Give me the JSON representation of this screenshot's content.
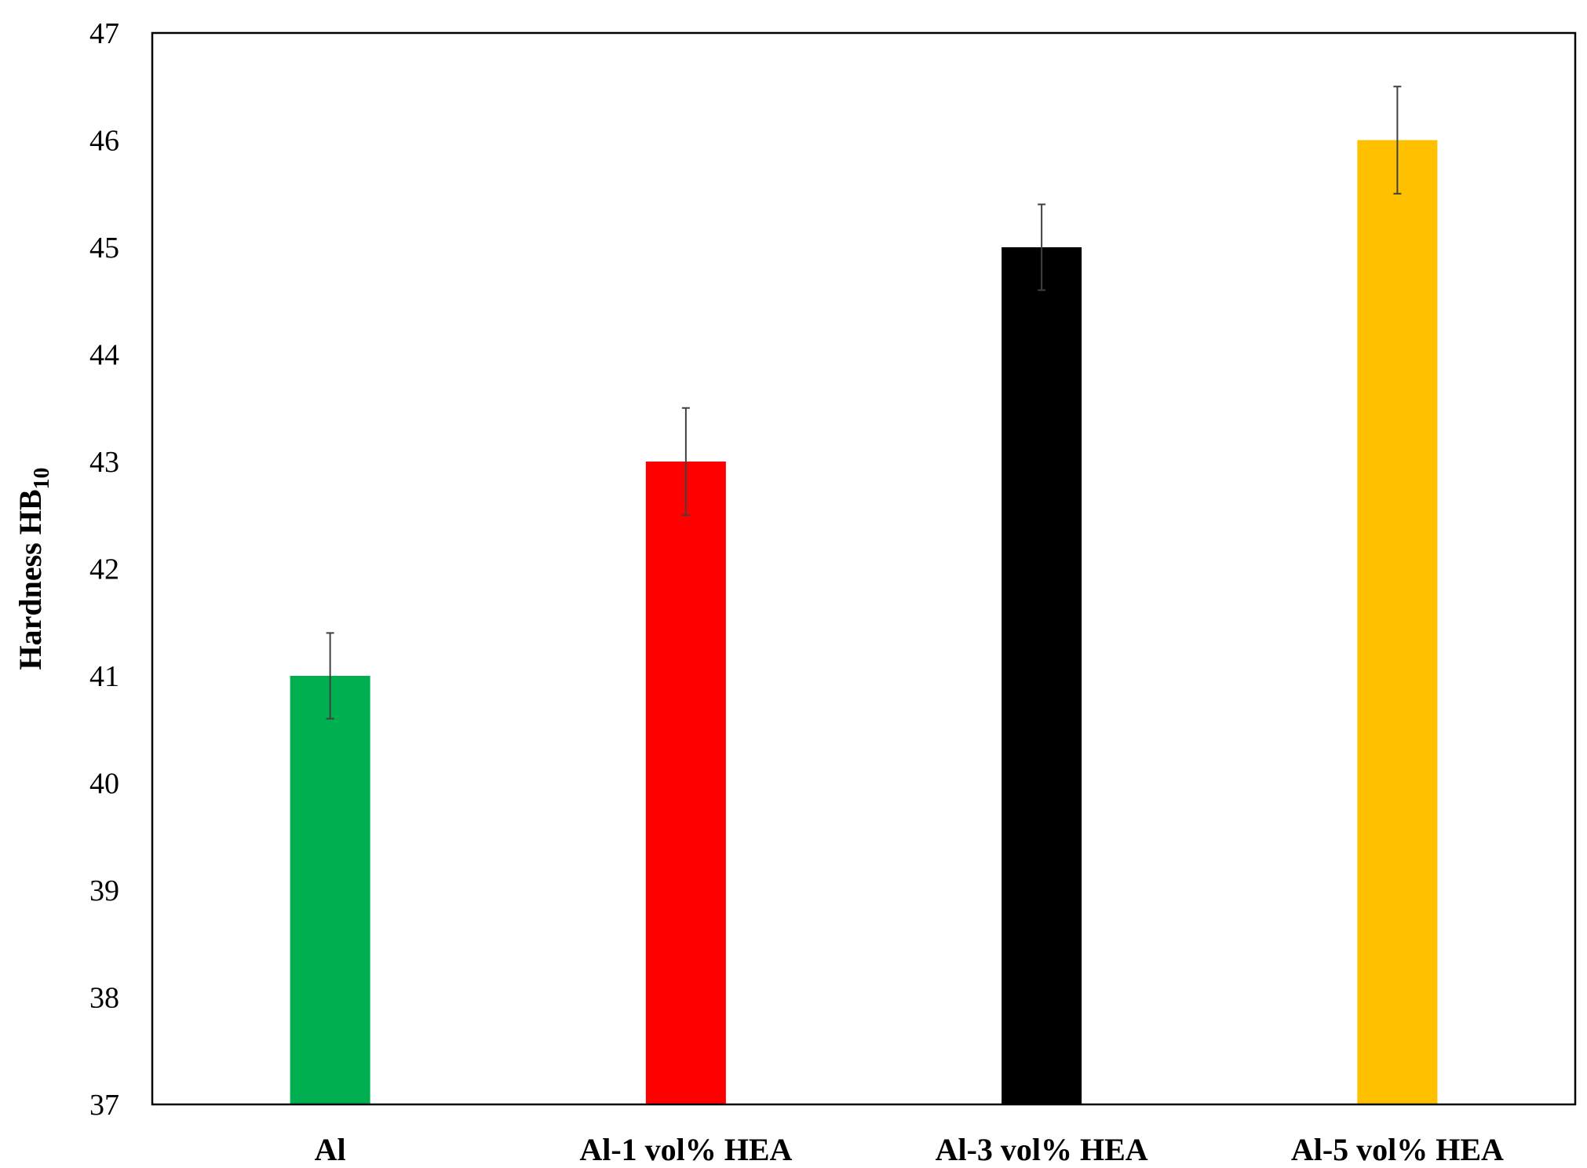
{
  "chart_data": {
    "type": "bar",
    "title": "",
    "xlabel": "",
    "ylabel": {
      "main": "Hardness HB",
      "subscript": "10"
    },
    "ylim": [
      37,
      47
    ],
    "yticks": [
      "37",
      "38",
      "39",
      "40",
      "41",
      "42",
      "43",
      "44",
      "45",
      "46",
      "47"
    ],
    "grid": false,
    "legend": "none",
    "categories": [
      "Al",
      "Al-1 vol% HEA",
      "Al-3 vol% HEA",
      "Al-5 vol% HEA"
    ],
    "values": [
      41,
      43,
      45,
      46
    ],
    "errors": [
      0.4,
      0.5,
      0.4,
      0.5
    ],
    "colors": [
      "#00b050",
      "#ff0000",
      "#000000",
      "#ffc000"
    ],
    "error_bar_color": "#404040"
  }
}
